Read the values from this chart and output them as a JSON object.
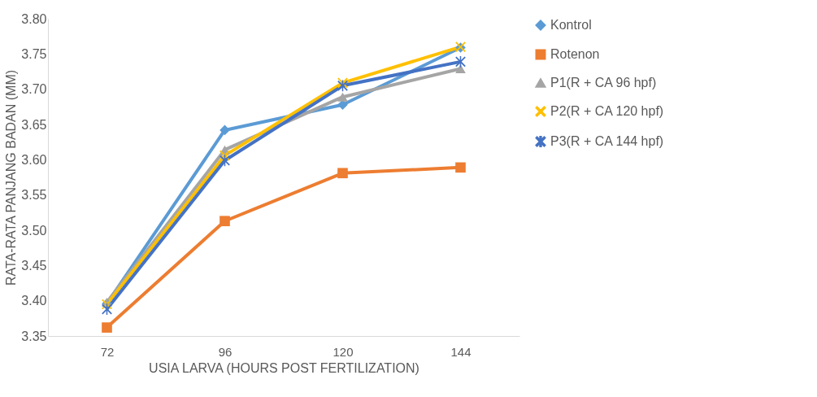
{
  "chart_data": {
    "type": "line",
    "xlabel": "USIA LARVA (HOURS POST FERTILIZATION)",
    "ylabel": "RATA-RATA PANJANG BADAN (MM)",
    "categories": [
      "72",
      "96",
      "120",
      "144"
    ],
    "ylim": [
      3.35,
      3.8
    ],
    "yticks": [
      {
        "value": 3.35,
        "label": "3.35"
      },
      {
        "value": 3.4,
        "label": "3.40"
      },
      {
        "value": 3.45,
        "label": "3.45"
      },
      {
        "value": 3.5,
        "label": "3.50"
      },
      {
        "value": 3.55,
        "label": "3.55"
      },
      {
        "value": 3.6,
        "label": "3.60"
      },
      {
        "value": 3.65,
        "label": "3.65"
      },
      {
        "value": 3.7,
        "label": "3.70"
      },
      {
        "value": 3.75,
        "label": "3.75"
      },
      {
        "value": 3.8,
        "label": "3.80"
      }
    ],
    "grid": false,
    "legend": "right",
    "line_style": "solid",
    "series": [
      {
        "name": "Kontrol",
        "color": "#5b9bd5",
        "marker": "diamond",
        "values": [
          3.396,
          3.642,
          3.678,
          3.759
        ]
      },
      {
        "name": "Rotenon",
        "color": "#ed7d31",
        "marker": "square",
        "values": [
          3.362,
          3.513,
          3.581,
          3.589
        ]
      },
      {
        "name": "P1(R + CA 96 hpf)",
        "color": "#a5a5a5",
        "marker": "triangle",
        "values": [
          3.398,
          3.614,
          3.689,
          3.729
        ]
      },
      {
        "name": "P2(R + CA 120 hpf)",
        "color": "#ffc000",
        "marker": "cross",
        "values": [
          3.395,
          3.606,
          3.709,
          3.76
        ]
      },
      {
        "name": "P3(R + CA 144 hpf)",
        "color": "#4472c4",
        "marker": "star",
        "values": [
          3.388,
          3.599,
          3.705,
          3.739
        ]
      }
    ]
  }
}
